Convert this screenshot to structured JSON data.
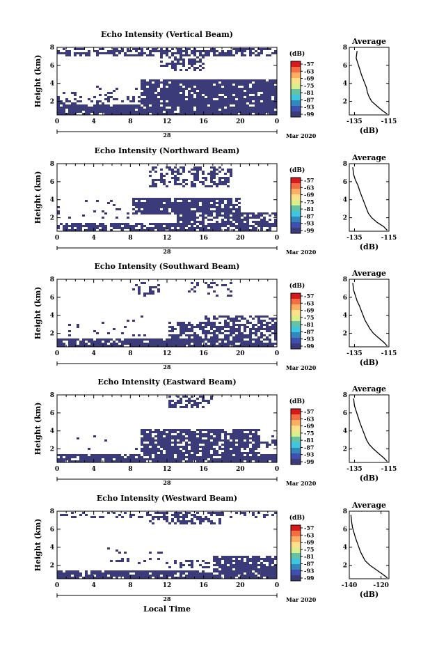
{
  "figure": {
    "xlabel": "Local Time",
    "date_day": "28",
    "date_month_year": "Mar 2020",
    "cbar_unit": "(dB)",
    "avg_title": "Average",
    "avg_xlabel": "(dB)",
    "ylabel": "Height (km)"
  },
  "colorbar": {
    "ticks": [
      "-57",
      "-63",
      "-69",
      "-75",
      "-81",
      "-87",
      "-93",
      "-99"
    ],
    "colors": [
      "#d7191c",
      "#f46d43",
      "#fdae61",
      "#fee08b",
      "#d9ef8b",
      "#66c2a5",
      "#3ec6e0",
      "#3288bd",
      "#3f4fb0",
      "#3b3b7a"
    ]
  },
  "chart_data": [
    {
      "type": "heatmap",
      "title": "Echo Intensity (Vertical Beam)",
      "xlabel": "Local Time",
      "ylabel": "Height (km)",
      "x_ticks": [
        "0",
        "4",
        "8",
        "12",
        "16",
        "20",
        "0"
      ],
      "xlim": [
        0,
        24
      ],
      "y_ticks": [
        "2",
        "4",
        "6",
        "8"
      ],
      "ylim": [
        0.5,
        8
      ],
      "colorbar_label": "(dB)",
      "colorbar_ticks": [
        "-57",
        "-63",
        "-69",
        "-75",
        "-81",
        "-87",
        "-93",
        "-99"
      ],
      "dominant_color": "#3b3b7a",
      "average": {
        "title": "Average",
        "xlabel": "(dB)",
        "x_ticks": [
          "-135",
          "-115"
        ],
        "xlim": [
          -138,
          -115
        ],
        "y_ticks": [
          "2",
          "4",
          "6",
          "8"
        ],
        "ylim": [
          0.5,
          8
        ],
        "profile_x": [
          -133.5,
          -134,
          -133,
          -132,
          -131,
          -130,
          -129,
          -128,
          -127.5,
          -126.5,
          -125,
          -122,
          -119,
          -116
        ],
        "profile_y": [
          7.6,
          6.8,
          6.2,
          5.6,
          5.0,
          4.5,
          4.0,
          3.5,
          3.0,
          2.5,
          2.0,
          1.5,
          1.0,
          0.6
        ]
      }
    },
    {
      "type": "heatmap",
      "title": "Echo Intensity (Northward Beam)",
      "xlabel": "Local Time",
      "ylabel": "Height (km)",
      "x_ticks": [
        "0",
        "4",
        "8",
        "12",
        "16",
        "20",
        "0"
      ],
      "xlim": [
        0,
        24
      ],
      "y_ticks": [
        "2",
        "4",
        "6",
        "8"
      ],
      "ylim": [
        0.5,
        8
      ],
      "colorbar_label": "(dB)",
      "colorbar_ticks": [
        "-57",
        "-63",
        "-69",
        "-75",
        "-81",
        "-87",
        "-93",
        "-99"
      ],
      "dominant_color": "#3b3b7a",
      "average": {
        "title": "Average",
        "xlabel": "(dB)",
        "x_ticks": [
          "-135",
          "-115"
        ],
        "xlim": [
          -138,
          -115
        ],
        "y_ticks": [
          "2",
          "4",
          "6",
          "8"
        ],
        "ylim": [
          0.5,
          8
        ],
        "profile_x": [
          -136,
          -135.5,
          -134.5,
          -133,
          -132,
          -131,
          -130,
          -129,
          -128,
          -127,
          -125,
          -122,
          -118,
          -116
        ],
        "profile_y": [
          7.6,
          6.8,
          6.2,
          5.6,
          5.0,
          4.5,
          4.0,
          3.5,
          3.0,
          2.5,
          2.0,
          1.5,
          1.0,
          0.6
        ]
      }
    },
    {
      "type": "heatmap",
      "title": "Echo Intensity (Southward Beam)",
      "xlabel": "Local Time",
      "ylabel": "Height (km)",
      "x_ticks": [
        "0",
        "4",
        "8",
        "12",
        "16",
        "20",
        "0"
      ],
      "xlim": [
        0,
        24
      ],
      "y_ticks": [
        "2",
        "4",
        "6",
        "8"
      ],
      "ylim": [
        0.5,
        8
      ],
      "colorbar_label": "(dB)",
      "colorbar_ticks": [
        "-57",
        "-63",
        "-69",
        "-75",
        "-81",
        "-87",
        "-93",
        "-99"
      ],
      "dominant_color": "#3b3b7a",
      "average": {
        "title": "Average",
        "xlabel": "(dB)",
        "x_ticks": [
          "-135",
          "-115"
        ],
        "xlim": [
          -138,
          -115
        ],
        "y_ticks": [
          "2",
          "4",
          "6",
          "8"
        ],
        "ylim": [
          0.5,
          8
        ],
        "profile_x": [
          -136,
          -135.5,
          -134.5,
          -133.5,
          -132,
          -131,
          -130,
          -129,
          -127.5,
          -126,
          -124,
          -121,
          -118,
          -116
        ],
        "profile_y": [
          7.6,
          6.8,
          6.2,
          5.6,
          5.0,
          4.5,
          4.0,
          3.5,
          3.0,
          2.5,
          2.0,
          1.5,
          1.0,
          0.6
        ]
      }
    },
    {
      "type": "heatmap",
      "title": "Echo Intensity (Eastward Beam)",
      "xlabel": "Local Time",
      "ylabel": "Height (km)",
      "x_ticks": [
        "0",
        "4",
        "8",
        "12",
        "16",
        "20",
        "0"
      ],
      "xlim": [
        0,
        24
      ],
      "y_ticks": [
        "2",
        "4",
        "6",
        "8"
      ],
      "ylim": [
        0.5,
        8
      ],
      "colorbar_label": "(dB)",
      "colorbar_ticks": [
        "-57",
        "-63",
        "-69",
        "-75",
        "-81",
        "-87",
        "-93",
        "-99"
      ],
      "dominant_color": "#3b3b7a",
      "average": {
        "title": "Average",
        "xlabel": "(dB)",
        "x_ticks": [
          "-135",
          "-115"
        ],
        "xlim": [
          -138,
          -115
        ],
        "y_ticks": [
          "2",
          "4",
          "6",
          "8"
        ],
        "ylim": [
          0.5,
          8
        ],
        "profile_x": [
          -135.5,
          -135,
          -134,
          -133,
          -132,
          -131,
          -130,
          -129,
          -128,
          -126.5,
          -124,
          -121,
          -118,
          -116
        ],
        "profile_y": [
          7.6,
          6.8,
          6.2,
          5.6,
          5.0,
          4.5,
          4.0,
          3.5,
          3.0,
          2.5,
          2.0,
          1.5,
          1.0,
          0.6
        ]
      }
    },
    {
      "type": "heatmap",
      "title": "Echo Intensity (Westward Beam)",
      "xlabel": "Local Time",
      "ylabel": "Height (km)",
      "x_ticks": [
        "0",
        "4",
        "8",
        "12",
        "16",
        "20",
        "0"
      ],
      "xlim": [
        0,
        24
      ],
      "y_ticks": [
        "2",
        "4",
        "6",
        "8"
      ],
      "ylim": [
        0.5,
        8
      ],
      "colorbar_label": "(dB)",
      "colorbar_ticks": [
        "-57",
        "-63",
        "-69",
        "-75",
        "-81",
        "-87",
        "-93",
        "-99"
      ],
      "dominant_color": "#3b3b7a",
      "average": {
        "title": "Average",
        "xlabel": "(dB)",
        "x_ticks": [
          "-140",
          "-120"
        ],
        "xlim": [
          -140,
          -115
        ],
        "y_ticks": [
          "2",
          "4",
          "6",
          "8"
        ],
        "ylim": [
          0.5,
          8
        ],
        "profile_x": [
          -139,
          -138.5,
          -138,
          -137,
          -136,
          -135,
          -134,
          -133,
          -131.5,
          -130,
          -127,
          -123,
          -119,
          -116
        ],
        "profile_y": [
          7.6,
          6.8,
          6.2,
          5.6,
          5.0,
          4.5,
          4.0,
          3.5,
          3.0,
          2.5,
          2.0,
          1.5,
          1.0,
          0.6
        ]
      }
    }
  ]
}
